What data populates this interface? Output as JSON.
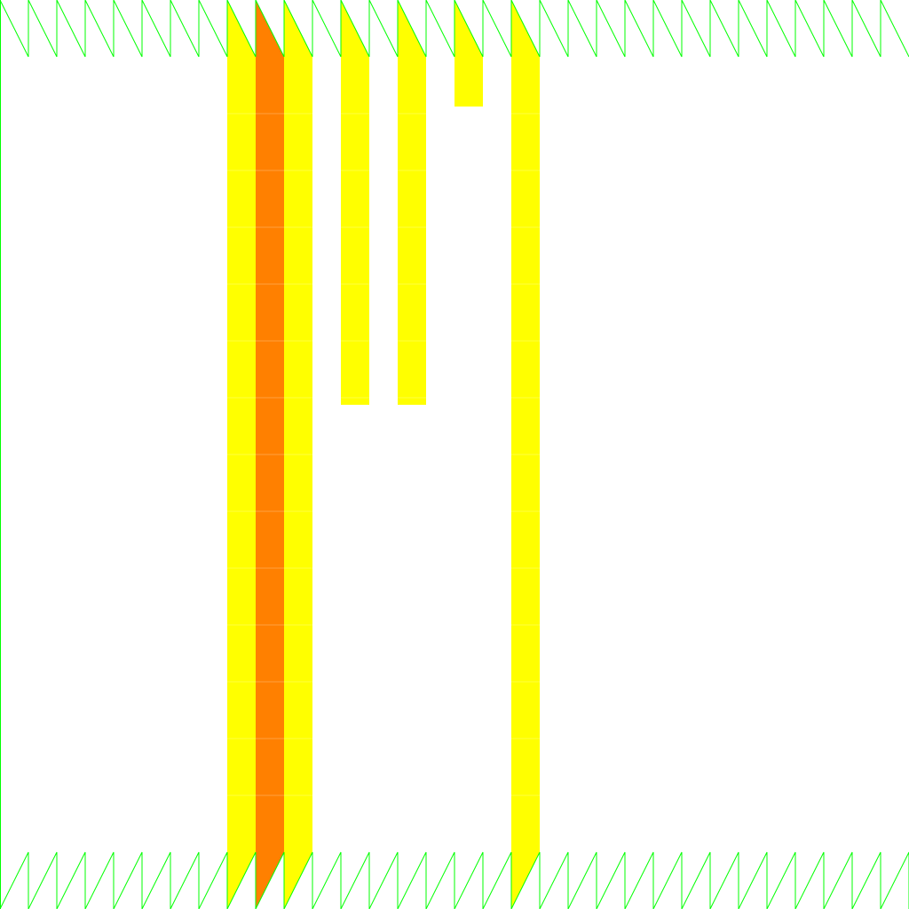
{
  "colors": {
    "background": "#ffffff",
    "zigzag_stroke": "#00ff00",
    "bar_primary": "#ffff00",
    "bar_accent": "#ff8000"
  },
  "icons": {
    "top_band": "zigzag-border-icon",
    "bottom_band": "zigzag-border-icon"
  },
  "grid": {
    "columns": 32,
    "rows": 16
  },
  "columns": [
    {
      "index": 8,
      "color_key": "bar_primary",
      "level": 1.0
    },
    {
      "index": 9,
      "color_key": "bar_accent",
      "level": 1.0
    },
    {
      "index": 10,
      "color_key": "bar_primary",
      "level": 1.0
    },
    {
      "index": 12,
      "color_key": "bar_primary",
      "level": 0.4375
    },
    {
      "index": 14,
      "color_key": "bar_primary",
      "level": 0.4375
    },
    {
      "index": 16,
      "color_key": "bar_primary",
      "level": 0.0625
    },
    {
      "index": 18,
      "color_key": "bar_primary",
      "level": 1.0
    }
  ]
}
